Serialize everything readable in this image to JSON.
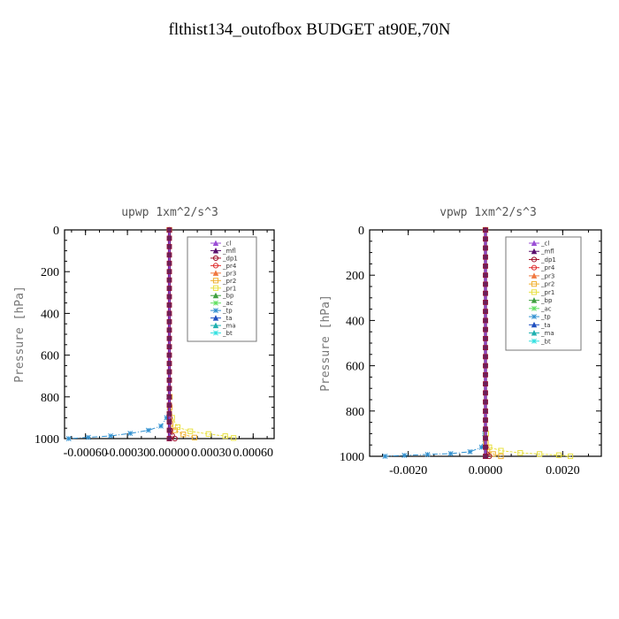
{
  "title": "flthist134_outofbox  BUDGET at90E,70N",
  "colors": {
    "_cl": "#9b4fd6",
    "_mfl": "#5a0f6e",
    "_dp1": "#a0102a",
    "_pr4": "#e03030",
    "_pr3": "#f07840",
    "_pr2": "#f0b030",
    "_pr1": "#e8e040",
    "_bp": "#40a040",
    "_ac": "#60e060",
    "_tp": "#3090d0",
    "_ta": "#2050c0",
    "_ma": "#20b0b0",
    "_bt": "#30e0e0"
  },
  "chart_data": [
    {
      "type": "line",
      "title": "upwp   1xm^2/s^3",
      "xlabel": "",
      "ylabel": "Pressure [hPa]",
      "xlim": [
        -0.00075,
        0.00075
      ],
      "ylim": [
        1000,
        0
      ],
      "xticks": [
        -0.0006,
        -0.0003,
        0.0,
        0.0003,
        0.0006
      ],
      "xtick_labels": [
        "-0.00060",
        "-0.00030",
        "0.00000",
        "0.00030",
        "0.00060"
      ],
      "yticks": [
        0,
        200,
        400,
        600,
        800,
        1000
      ],
      "ytick_labels": [
        "0",
        "200",
        "400",
        "600",
        "800",
        "1000"
      ],
      "legend_position": "top-right",
      "legend": [
        "_cl",
        "_mfl",
        "_dp1",
        "_pr4",
        "_pr3",
        "_pr2",
        "_pr1",
        "_bp",
        "_ac",
        "_tp",
        "_ta",
        "_ma",
        "_bt"
      ],
      "series": [
        {
          "name": "_tp",
          "x": [
            0,
            -4e-06,
            -2e-05,
            -6e-05,
            -0.00015,
            -0.00028,
            -0.00042,
            -0.00058,
            -0.00072
          ],
          "y": [
            0,
            800,
            900,
            940,
            960,
            975,
            987,
            994,
            1000
          ]
        },
        {
          "name": "_pr1",
          "x": [
            0,
            4e-06,
            2e-05,
            6e-05,
            0.00015,
            0.00028,
            0.0004,
            0.00046
          ],
          "y": [
            0,
            800,
            900,
            945,
            965,
            978,
            988,
            997
          ]
        },
        {
          "name": "_pr2",
          "x": [
            0,
            3e-06,
            1e-05,
            4e-05,
            0.0001,
            0.00018
          ],
          "y": [
            0,
            850,
            930,
            960,
            980,
            995
          ]
        },
        {
          "name": "_dp1",
          "x": [
            0,
            2e-06,
            8e-06,
            2e-05,
            4e-05
          ],
          "y": [
            0,
            900,
            960,
            985,
            1000
          ]
        },
        {
          "name": "_mfl",
          "x": [
            0,
            0,
            0,
            0
          ],
          "y": [
            0,
            400,
            800,
            1000
          ]
        },
        {
          "name": "_cl",
          "x": [
            0,
            0,
            0,
            0
          ],
          "y": [
            0,
            400,
            800,
            1000
          ]
        }
      ]
    },
    {
      "type": "line",
      "title": "vpwp   1xm^2/s^3",
      "xlabel": "",
      "ylabel": "Pressure [hPa]",
      "xlim": [
        -0.003,
        0.003
      ],
      "ylim": [
        1000,
        0
      ],
      "xticks": [
        -0.002,
        0.0,
        0.002
      ],
      "xtick_labels": [
        "-0.0020",
        "0.0000",
        "0.0020"
      ],
      "yticks": [
        0,
        200,
        400,
        600,
        800,
        1000
      ],
      "ytick_labels": [
        "0",
        "200",
        "400",
        "600",
        "800",
        "1000"
      ],
      "legend_position": "top-right",
      "legend": [
        "_cl",
        "_mfl",
        "_dp1",
        "_pr4",
        "_pr3",
        "_pr2",
        "_pr1",
        "_bp",
        "_ac",
        "_tp",
        "_ta",
        "_ma",
        "_bt"
      ],
      "series": [
        {
          "name": "_tp",
          "x": [
            0,
            -2e-05,
            -0.0001,
            -0.0004,
            -0.0009,
            -0.0015,
            -0.0021,
            -0.0026
          ],
          "y": [
            0,
            900,
            960,
            980,
            988,
            992,
            996,
            1000
          ]
        },
        {
          "name": "_pr1",
          "x": [
            0,
            2e-05,
            0.0001,
            0.0004,
            0.0009,
            0.0014,
            0.0019,
            0.0022
          ],
          "y": [
            0,
            900,
            960,
            975,
            985,
            990,
            995,
            1000
          ]
        },
        {
          "name": "_pr2",
          "x": [
            0,
            1e-05,
            5e-05,
            0.0002,
            0.0004
          ],
          "y": [
            0,
            940,
            975,
            990,
            1000
          ]
        },
        {
          "name": "_dp1",
          "x": [
            0,
            1e-05,
            4e-05,
            0.0001
          ],
          "y": [
            0,
            960,
            990,
            1000
          ]
        },
        {
          "name": "_mfl",
          "x": [
            0,
            0,
            0,
            0
          ],
          "y": [
            0,
            400,
            800,
            1000
          ]
        },
        {
          "name": "_cl",
          "x": [
            0,
            0,
            0,
            0
          ],
          "y": [
            0,
            400,
            800,
            1000
          ]
        }
      ]
    }
  ]
}
